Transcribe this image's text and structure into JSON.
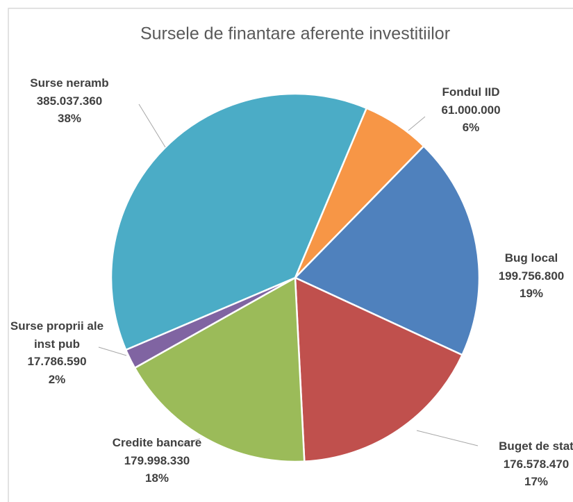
{
  "chart_data": {
    "type": "pie",
    "title": "Sursele de finantare aferente investitiilor",
    "categories": [
      "Fondul IID",
      "Bug local",
      "Buget de stat",
      "Credite bancare",
      "Surse proprii ale inst pub",
      "Surse neramb"
    ],
    "values": [
      61000000,
      199756800,
      176578470,
      179998330,
      17786590,
      385037360
    ],
    "value_labels": [
      "61.000.000",
      "199.756.800",
      "176.578.470",
      "179.998.330",
      "17.786.590",
      "385.037.360"
    ],
    "percent_labels": [
      "6%",
      "19%",
      "17%",
      "18%",
      "2%",
      "38%"
    ],
    "colors": [
      "#f79646",
      "#4f81bd",
      "#c0504d",
      "#9bbb59",
      "#8064a2",
      "#4bacc6"
    ]
  }
}
